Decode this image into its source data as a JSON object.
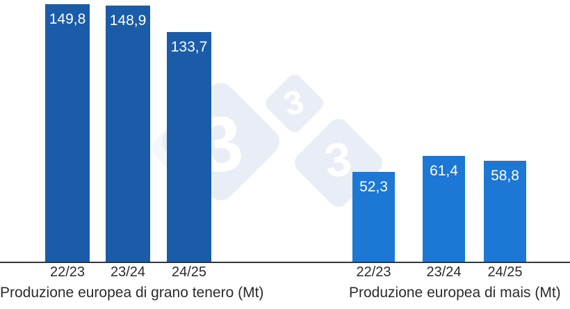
{
  "chart_data": {
    "type": "bar",
    "unit": "Mt",
    "grid": false,
    "legend": false,
    "ylim": [
      0,
      152.2
    ],
    "axis_line_color": "#33363a",
    "value_label_color": "#ffffff",
    "groups": [
      {
        "caption": "Produzione europea di grano tenero (Mt)",
        "categories": [
          "22/23",
          "23/24",
          "24/25"
        ],
        "values": [
          149.8,
          148.9,
          133.7
        ],
        "value_labels": [
          "149,8",
          "148,9",
          "133,7"
        ],
        "bar_color": "#1a5ca8"
      },
      {
        "caption": "Produzione europea di mais (Mt)",
        "categories": [
          "22/23",
          "23/24",
          "24/25"
        ],
        "values": [
          52.3,
          61.4,
          58.8
        ],
        "value_labels": [
          "52,3",
          "61,4",
          "58,8"
        ],
        "bar_color": "#1d77d4"
      }
    ]
  },
  "watermark": {
    "digit": "3",
    "diamond_color": "#e9eef6",
    "faint_diamond_color": "#f4f7fb",
    "digit_color": "#ffffff"
  },
  "text_color": "#2b2b2b"
}
